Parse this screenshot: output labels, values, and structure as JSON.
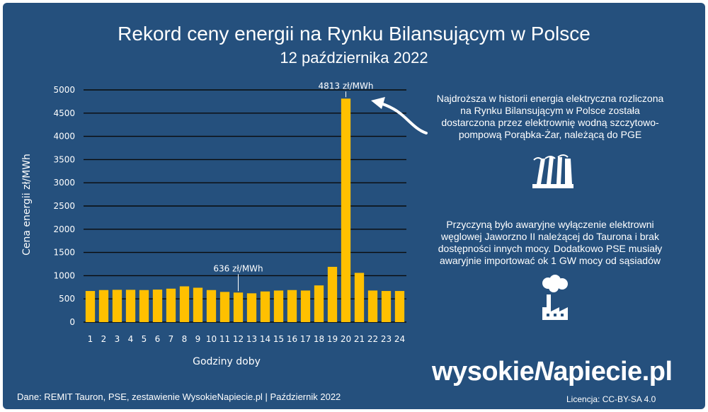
{
  "chart_data": {
    "type": "bar",
    "title": "Rekord ceny energii na Rynku Bilansującym w Polsce",
    "subtitle": "12 października 2022",
    "xlabel": "Godziny doby",
    "ylabel": "Cena energii zł/MWh",
    "ylim": [
      0,
      5000
    ],
    "yticks": [
      0,
      500,
      1000,
      1500,
      2000,
      2500,
      3000,
      3500,
      4000,
      4500,
      5000
    ],
    "grid": true,
    "categories": [
      "1",
      "2",
      "3",
      "4",
      "5",
      "6",
      "7",
      "8",
      "9",
      "10",
      "11",
      "12",
      "13",
      "14",
      "15",
      "16",
      "17",
      "18",
      "19",
      "20",
      "21",
      "22",
      "23",
      "24"
    ],
    "values": [
      670,
      690,
      695,
      695,
      690,
      700,
      720,
      770,
      740,
      690,
      650,
      636,
      620,
      660,
      680,
      690,
      680,
      790,
      1190,
      4813,
      1060,
      680,
      670,
      670
    ],
    "bar_color": "#ffc000",
    "annotations": [
      {
        "category": "20",
        "value": 4813,
        "text": "4813 zł/MWh"
      },
      {
        "category": "12",
        "value": 636,
        "text": "636 zł/MWh"
      }
    ]
  },
  "notes": {
    "record": "Najdroższa w historii energia elektryczna rozliczona na Rynku Bilansującym w Polsce została dostarczona przez elektrownię wodną szczytowo-pompową Porąbka-Żar, należącą do PGE",
    "cause": "Przyczyną było awaryjne wyłączenie elektrowni węglowej Jaworzno II należącej do Taurona i brak dostępności innych mocy. Dodatkowo PSE musiały awaryjnie importować ok 1 GW mocy od sąsiadów"
  },
  "icons": {
    "record": "hydro-dam-icon",
    "cause": "coal-plant-icon"
  },
  "brand": {
    "part1": "wysokie",
    "part2": "N",
    "part3": "apiecie.pl"
  },
  "footer": {
    "source": "Dane: REMIT Tauron, PSE, zestawienie WysokieNapiecie.pl   |   Październik 2022",
    "license": "Licencja: CC-BY-SA 4.0"
  },
  "colors": {
    "background": "#25507d",
    "bars": "#ffc000",
    "text": "#ffffff"
  }
}
